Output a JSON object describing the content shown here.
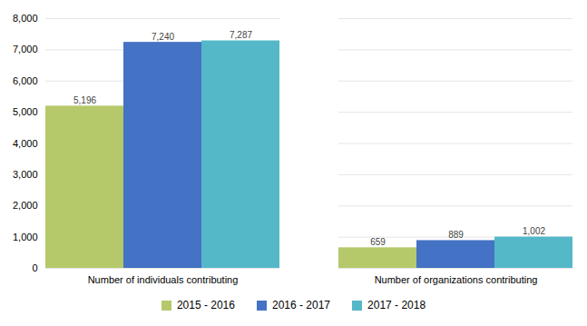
{
  "chart_data": {
    "type": "bar",
    "categories": [
      "Number of individuals contributing",
      "Number of organizations contributing"
    ],
    "series": [
      {
        "name": "2015 - 2016",
        "color": "#b5c96a",
        "values": [
          5196,
          659
        ],
        "value_labels": [
          "5,196",
          "659"
        ]
      },
      {
        "name": "2016 - 2017",
        "color": "#4472c4",
        "values": [
          7240,
          889
        ],
        "value_labels": [
          "7,240",
          "889"
        ]
      },
      {
        "name": "2017 - 2018",
        "color": "#55b8c8",
        "values": [
          7287,
          1002
        ],
        "value_labels": [
          "7,287",
          "1,002"
        ]
      }
    ],
    "ylim": [
      0,
      8000
    ],
    "yticks": [
      0,
      {
        "value": 1000,
        "label": "1,000"
      },
      {
        "value": 2000,
        "label": "2,000"
      },
      {
        "value": 3000,
        "label": "3,000"
      },
      {
        "value": 4000,
        "label": "4,000"
      },
      {
        "value": 5000,
        "label": "5,000"
      },
      {
        "value": 6000,
        "label": "6,000"
      },
      {
        "value": 7000,
        "label": "7,000"
      },
      {
        "value": 8000,
        "label": "8,000"
      }
    ],
    "grid": true,
    "legend": "bottom",
    "data_labels": true
  }
}
